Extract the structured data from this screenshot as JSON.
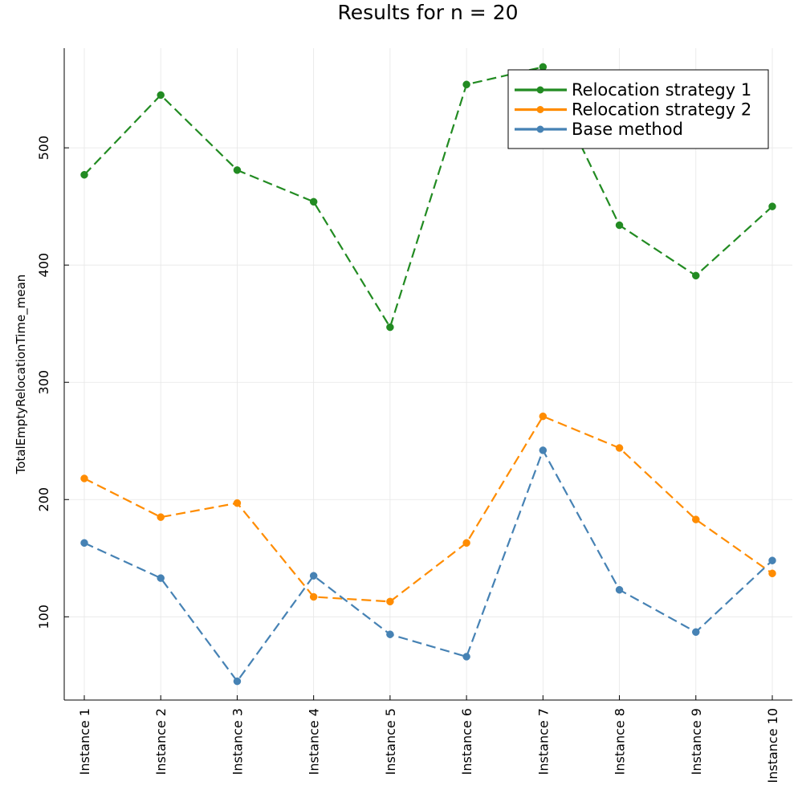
{
  "chart_data": {
    "type": "line",
    "title": "Results for n = 20",
    "xlabel": "",
    "ylabel": "TotalEmptyRelocationTime_mean",
    "categories": [
      "Instance 1",
      "Instance 2",
      "Instance 3",
      "Instance 4",
      "Instance 5",
      "Instance 6",
      "Instance 7",
      "Instance 8",
      "Instance 9",
      "Instance 10"
    ],
    "ylim": [
      29,
      585
    ],
    "yticks": [
      100,
      200,
      300,
      400,
      500
    ],
    "grid": true,
    "legend_position": "top-right",
    "line_style": "dashed",
    "series": [
      {
        "name": "Relocation strategy 1",
        "color": "#228b22",
        "values": [
          477,
          545,
          481,
          454,
          347,
          554,
          569,
          434,
          391,
          450
        ]
      },
      {
        "name": "Relocation strategy 2",
        "color": "#ff8c00",
        "values": [
          218,
          185,
          197,
          117,
          113,
          163,
          271,
          244,
          183,
          137
        ]
      },
      {
        "name": "Base method",
        "color": "#4682b4",
        "values": [
          163,
          133,
          45,
          135,
          85,
          66,
          242,
          123,
          87,
          148
        ]
      }
    ]
  }
}
